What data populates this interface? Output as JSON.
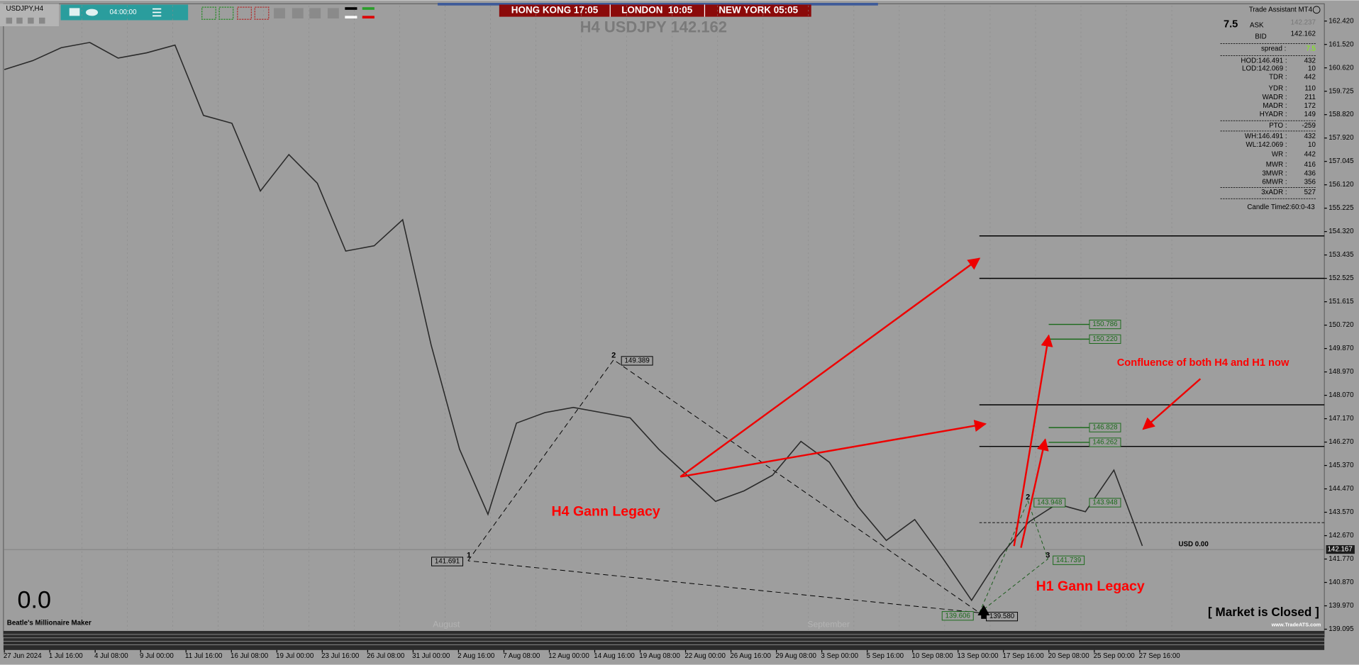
{
  "header": {
    "symbol": "USDJPY,H4",
    "timer": "04:00:00",
    "clocks": [
      "HONG KONG 17:05",
      "LONDON  10:05",
      "NEW YORK 05:05"
    ],
    "title": "H4 USDJPY 142.162"
  },
  "panel": {
    "name": "Trade Assistant MT4",
    "spread_big": "7.5",
    "ask_label": "ASK",
    "ask": "142.237",
    "bid_label": "BID",
    "bid": "142.162",
    "spread_label": "spread :",
    "spread": "7.5",
    "rows": [
      [
        "HOD:146.491 :",
        "432"
      ],
      [
        "LOD:142.069 :",
        "10"
      ],
      [
        "TDR :",
        "442"
      ],
      [
        "YDR :",
        "110"
      ],
      [
        "WADR :",
        "211"
      ],
      [
        "MADR :",
        "172"
      ],
      [
        "HYADR :",
        "149"
      ],
      [
        "PTO :",
        "-259"
      ],
      [
        "WH:146.491 :",
        "432"
      ],
      [
        "WL:142.069 :",
        "10"
      ],
      [
        "WR :",
        "442"
      ],
      [
        "MWR :",
        "416"
      ],
      [
        "3MWR :",
        "436"
      ],
      [
        "6MWR :",
        "356"
      ],
      [
        "3xADR :",
        "527"
      ]
    ],
    "candle_time": "Candle Time",
    "candle_value": "2:60:0-43"
  },
  "price_axis": [
    "162.420",
    "161.520",
    "160.620",
    "159.725",
    "158.820",
    "157.920",
    "157.045",
    "156.120",
    "155.225",
    "154.320",
    "153.435",
    "152.525",
    "151.615",
    "150.720",
    "149.870",
    "148.970",
    "148.070",
    "147.170",
    "146.270",
    "145.370",
    "144.470",
    "143.570",
    "142.670",
    "141.770",
    "140.870",
    "139.970",
    "139.095"
  ],
  "current_price": "142.167",
  "time_axis": [
    "27 Jun 2024",
    "1 Jul 16:00",
    "4 Jul 08:00",
    "9 Jul 00:00",
    "11 Jul 16:00",
    "16 Jul 08:00",
    "19 Jul 00:00",
    "23 Jul 16:00",
    "26 Jul 08:00",
    "31 Jul 00:00",
    "2 Aug 16:00",
    "7 Aug 08:00",
    "12 Aug 00:00",
    "14 Aug 16:00",
    "19 Aug 08:00",
    "22 Aug 00:00",
    "26 Aug 16:00",
    "29 Aug 08:00",
    "3 Sep 00:00",
    "5 Sep 16:00",
    "10 Sep 08:00",
    "13 Sep 00:00",
    "17 Sep 16:00",
    "20 Sep 08:00",
    "25 Sep 00:00",
    "27 Sep 16:00"
  ],
  "months": [
    "August",
    "September"
  ],
  "price_series": [
    160.56,
    160.9,
    161.4,
    161.6,
    161.0,
    161.2,
    161.5,
    158.8,
    158.5,
    155.9,
    157.3,
    156.2,
    153.6,
    153.8,
    154.8,
    150.0,
    146.0,
    143.5,
    147.0,
    147.4,
    147.6,
    147.4,
    147.2,
    146.0,
    145.0,
    144.0,
    144.4,
    145.0,
    146.3,
    145.5,
    143.8,
    142.5,
    143.3,
    141.8,
    140.2,
    141.9,
    143.2,
    143.9,
    143.6,
    145.2,
    142.29
  ],
  "levels": [
    "149.389",
    "141.691",
    "139.580",
    "139.606",
    "150.786",
    "150.220",
    "146.828",
    "146.262",
    "143.948",
    "143.948",
    "141.739"
  ],
  "gann_points": [
    "1",
    "2",
    "2",
    "3"
  ],
  "annotations": {
    "confluence": "Confluence of both H4 and H1 now",
    "h4": "H4 Gann Legacy",
    "h1": "H1 Gann Legacy",
    "market": "[ Market is Closed ]",
    "site": "www.TradeATS.com",
    "balance": "0.0",
    "ea": "Beatle's Millionaire Maker",
    "usd": "USD 0.00"
  }
}
